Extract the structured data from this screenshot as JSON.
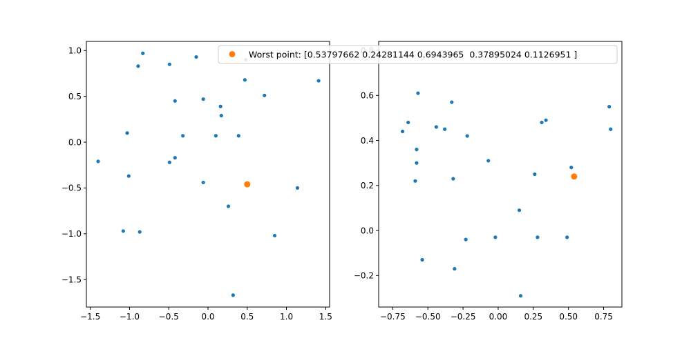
{
  "colors": {
    "series": "#1f77b4",
    "highlight": "#ff7f0e",
    "axis": "#000000",
    "background": "#ffffff",
    "legend_border": "#cccccc"
  },
  "legend": {
    "label": "Worst point: [0.53797662 0.24281144 0.6943965  0.37895024 0.1126951 ]",
    "placement": "top-right"
  },
  "chart_data": [
    {
      "type": "scatter",
      "xlim": [
        -1.55,
        1.55
      ],
      "ylim": [
        -1.8,
        1.1
      ],
      "xticks": [
        -1.5,
        -1.0,
        -0.5,
        0.0,
        0.5,
        1.0,
        1.5
      ],
      "xtick_labels": [
        "−1.5",
        "−1.0",
        "−0.5",
        "0.0",
        "0.5",
        "1.0",
        "1.5"
      ],
      "yticks": [
        -1.5,
        -1.0,
        -0.5,
        0.0,
        0.5,
        1.0
      ],
      "ytick_labels": [
        "−1.5",
        "−1.0",
        "−0.5",
        "0.0",
        "0.5",
        "1.0"
      ],
      "series": [
        {
          "points": [
            [
              -0.83,
              0.97
            ],
            [
              -0.89,
              0.83
            ],
            [
              -0.49,
              0.85
            ],
            [
              -0.15,
              0.93
            ],
            [
              0.48,
              0.9
            ],
            [
              0.47,
              0.68
            ],
            [
              0.72,
              0.51
            ],
            [
              1.41,
              0.67
            ],
            [
              -0.06,
              0.47
            ],
            [
              0.16,
              0.39
            ],
            [
              -0.42,
              0.45
            ],
            [
              0.17,
              0.29
            ],
            [
              -0.32,
              0.07
            ],
            [
              0.1,
              0.07
            ],
            [
              0.39,
              0.07
            ],
            [
              -1.03,
              0.1
            ],
            [
              -1.4,
              -0.21
            ],
            [
              -0.49,
              -0.22
            ],
            [
              -0.42,
              -0.17
            ],
            [
              -1.01,
              -0.37
            ],
            [
              -0.06,
              -0.44
            ],
            [
              1.14,
              -0.5
            ],
            [
              0.26,
              -0.7
            ],
            [
              -1.08,
              -0.97
            ],
            [
              -0.87,
              -0.98
            ],
            [
              0.85,
              -1.02
            ],
            [
              0.32,
              -1.67
            ]
          ]
        },
        {
          "points": [
            [
              0.5,
              -0.46
            ]
          ]
        }
      ]
    },
    {
      "type": "scatter",
      "xlim": [
        -0.85,
        0.88
      ],
      "ylim": [
        -0.34,
        0.84
      ],
      "xticks": [
        -0.75,
        -0.5,
        -0.25,
        0.0,
        0.25,
        0.5,
        0.75
      ],
      "xtick_labels": [
        "−0.75",
        "−0.50",
        "−0.25",
        "0.00",
        "0.25",
        "0.50",
        "0.75"
      ],
      "yticks": [
        -0.2,
        0.0,
        0.2,
        0.4,
        0.6,
        0.8
      ],
      "ytick_labels": [
        "−0.2",
        "0.0",
        "0.2",
        "0.4",
        "0.6",
        "0.8"
      ],
      "series": [
        {
          "points": [
            [
              -0.57,
              0.61
            ],
            [
              -0.33,
              0.57
            ],
            [
              0.79,
              0.55
            ],
            [
              -0.64,
              0.48
            ],
            [
              -0.68,
              0.44
            ],
            [
              0.34,
              0.49
            ],
            [
              0.31,
              0.48
            ],
            [
              0.8,
              0.45
            ],
            [
              -0.44,
              0.46
            ],
            [
              -0.38,
              0.45
            ],
            [
              -0.22,
              0.42
            ],
            [
              -0.58,
              0.36
            ],
            [
              -0.58,
              0.3
            ],
            [
              -0.07,
              0.31
            ],
            [
              0.52,
              0.28
            ],
            [
              0.26,
              0.25
            ],
            [
              -0.32,
              0.23
            ],
            [
              -0.59,
              0.22
            ],
            [
              0.15,
              0.09
            ],
            [
              -0.54,
              -0.13
            ],
            [
              -0.23,
              -0.04
            ],
            [
              -0.02,
              -0.03
            ],
            [
              0.28,
              -0.03
            ],
            [
              0.49,
              -0.03
            ],
            [
              -0.31,
              -0.17
            ],
            [
              0.16,
              -0.29
            ]
          ]
        },
        {
          "points": [
            [
              0.54,
              0.24
            ]
          ]
        }
      ]
    }
  ]
}
